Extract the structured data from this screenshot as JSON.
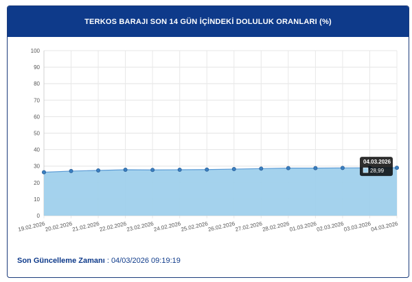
{
  "header": {
    "title": "TERKOS BARAJI SON 14 GÜN İÇİNDEKİ DOLULUK ORANLARI (%)"
  },
  "footer": {
    "label": "Son Güncelleme Zamanı",
    "separator": " : ",
    "value": "04/03/2026 09:19:19"
  },
  "tooltip": {
    "title": "04.03.2026",
    "value": "28,99"
  },
  "colors": {
    "header_bg": "#0e3a8a",
    "line": "#5b9bd5",
    "fill": "#9fd0ec",
    "point": "#3a7fc0"
  },
  "chart_data": {
    "type": "area",
    "title": "TERKOS BARAJI SON 14 GÜN İÇİNDEKİ DOLULUK ORANLARI (%)",
    "categories": [
      "19.02.2026",
      "20.02.2026",
      "21.02.2026",
      "22.02.2026",
      "23.02.2026",
      "24.02.2026",
      "25.02.2026",
      "26.02.2026",
      "27.02.2026",
      "28.02.2026",
      "01.03.2026",
      "02.03.2026",
      "03.03.2026",
      "04.03.2026"
    ],
    "values": [
      26.3,
      27.0,
      27.4,
      27.8,
      27.7,
      27.8,
      27.9,
      28.2,
      28.5,
      28.8,
      28.8,
      28.9,
      28.95,
      28.99
    ],
    "ylim": [
      0,
      100
    ],
    "yticks": [
      0,
      10,
      20,
      30,
      40,
      50,
      60,
      70,
      80,
      90,
      100
    ],
    "grid": true,
    "xlabel": "",
    "ylabel": ""
  }
}
